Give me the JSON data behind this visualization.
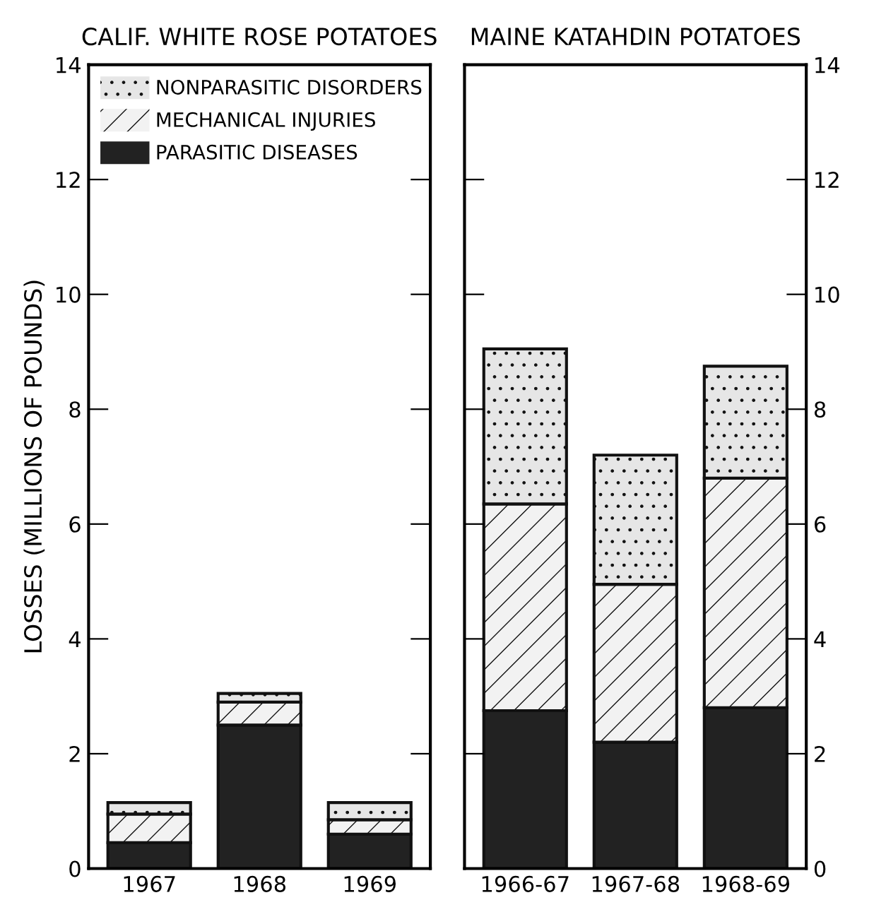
{
  "chart_data": [
    {
      "type": "bar",
      "title": "CALIF. WHITE ROSE POTATOES",
      "ylabel": "LOSSES (MILLIONS OF POUNDS)",
      "categories": [
        "1967",
        "1968",
        "1969"
      ],
      "stacked": true,
      "legend": "top left",
      "ylim": [
        0,
        14
      ],
      "yticks": [
        0,
        2,
        4,
        6,
        8,
        10,
        12,
        14
      ],
      "series": [
        {
          "name": "PARASITIC DISEASES",
          "color": "#222222",
          "values": [
            0.45,
            2.5,
            0.6
          ]
        },
        {
          "name": "MECHANICAL INJURIES",
          "color": "#f2f2f2",
          "values": [
            0.5,
            0.4,
            0.25
          ]
        },
        {
          "name": "NONPARASITIC DISORDERS",
          "color": "#e6e6e6",
          "values": [
            0.2,
            0.15,
            0.3
          ]
        }
      ]
    },
    {
      "type": "bar",
      "title": "MAINE KATAHDIN POTATOES",
      "categories": [
        "1966-67",
        "1967-68",
        "1968-69"
      ],
      "stacked": true,
      "y2lim": [
        0,
        14
      ],
      "y2ticks": [
        0,
        2,
        4,
        6,
        8,
        10,
        12,
        14
      ],
      "series": [
        {
          "color": "#222222",
          "axis": "y2",
          "values": [
            2.75,
            2.2,
            2.8
          ]
        },
        {
          "color": "#f2f2f2",
          "axis": "y2",
          "values": [
            3.6,
            2.75,
            4.0
          ]
        },
        {
          "color": "#e6e6e6",
          "axis": "y2",
          "values": [
            2.7,
            2.25,
            1.95
          ]
        }
      ]
    }
  ]
}
